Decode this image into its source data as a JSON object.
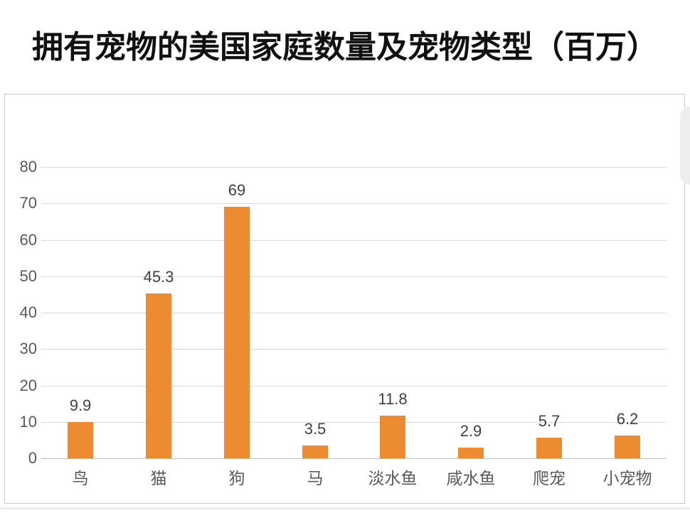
{
  "chart_data": {
    "type": "bar",
    "title": "拥有宠物的美国家庭数量及宠物类型（百万）",
    "categories": [
      "鸟",
      "猫",
      "狗",
      "马",
      "淡水鱼",
      "咸水鱼",
      "爬宠",
      "小宠物"
    ],
    "values": [
      9.9,
      45.3,
      69,
      3.5,
      11.8,
      2.9,
      5.7,
      6.2
    ],
    "value_labels": [
      "9.9",
      "45.3",
      "69",
      "3.5",
      "11.8",
      "2.9",
      "5.7",
      "6.2"
    ],
    "xlabel": "",
    "ylabel": "",
    "ylim": [
      0,
      80
    ],
    "y_ticks": [
      0,
      10,
      20,
      30,
      40,
      50,
      60,
      70,
      80
    ],
    "grid": "horizontal",
    "legend_position": "none",
    "colors": {
      "bar": "#ED8B33",
      "gridline": "#D9D9D9",
      "baseline": "#BFBFBF",
      "y_tick_label": "#595959",
      "value_label": "#404040",
      "category_label": "#595959",
      "title": "#111111",
      "panel_border": "#C9C9C9"
    }
  }
}
